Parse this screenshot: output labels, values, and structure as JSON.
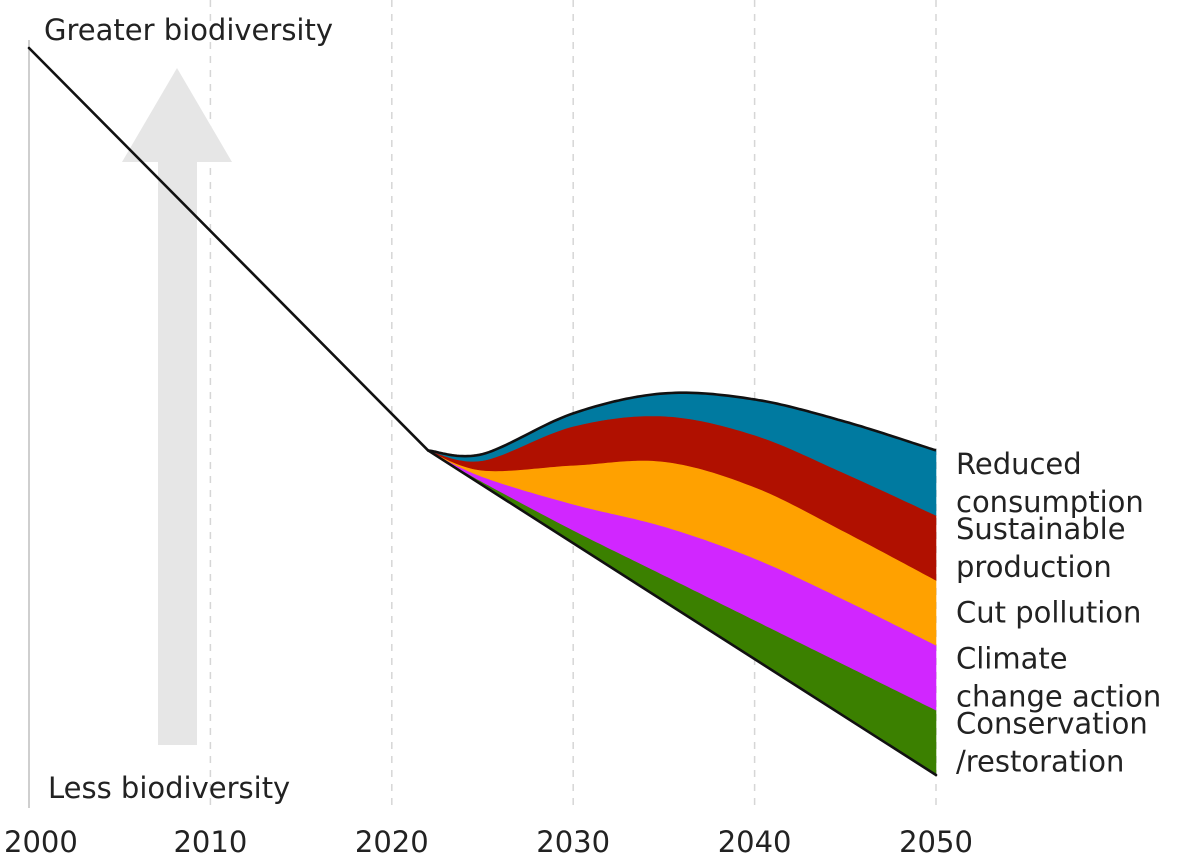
{
  "chart_data": {
    "type": "area",
    "x_ticks": [
      "2000",
      "2010",
      "2020",
      "2030",
      "2040",
      "2050"
    ],
    "xlim": [
      2000,
      2050
    ],
    "y_axis_top_label": "Greater biodiversity",
    "y_axis_bottom_label": "Less biodiversity",
    "baseline_trend": {
      "x": [
        2000,
        2022
      ],
      "y": [
        100,
        38
      ]
    },
    "business_as_usual": {
      "x": [
        2022,
        2050
      ],
      "y": [
        38,
        -12
      ]
    },
    "x": [
      2022,
      2025,
      2030,
      2035,
      2040,
      2045,
      2050
    ],
    "series": [
      {
        "name": "Conservation\n/restoration",
        "label_lines": [
          "Conservation",
          "/restoration"
        ],
        "color": "#3b8000",
        "values": [
          0,
          0.5,
          2.0,
          4.0,
          6.0,
          8.0,
          10.0
        ]
      },
      {
        "name": "Climate change action",
        "label_lines": [
          "Climate",
          "change action"
        ],
        "color": "#d126ff",
        "values": [
          0,
          0.8,
          4.0,
          7.5,
          9.5,
          10.0,
          10.0
        ]
      },
      {
        "name": "Cut pollution",
        "label_lines": [
          "Cut pollution"
        ],
        "color": "#ffa100",
        "values": [
          0,
          1.0,
          6.0,
          10.0,
          11.0,
          10.5,
          10.0
        ]
      },
      {
        "name": "Sustainable production",
        "label_lines": [
          "Sustainable",
          "production"
        ],
        "color": "#b01000",
        "values": [
          0,
          1.5,
          6.0,
          7.0,
          8.0,
          9.0,
          10.0
        ]
      },
      {
        "name": "Reduced consumption",
        "label_lines": [
          "Reduced",
          "consumption"
        ],
        "color": "#007aa0",
        "values": [
          0,
          1.0,
          2.0,
          3.5,
          5.5,
          8.0,
          10.0
        ]
      }
    ],
    "arrow_color": "#e6e6e6",
    "line_color": "#111111",
    "grid": "dashed vertical"
  }
}
